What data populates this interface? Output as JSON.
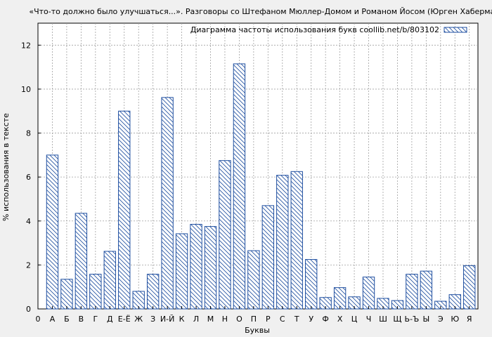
{
  "chart_data": {
    "type": "bar",
    "title": "«Что-то должно было улучшаться...». Разговоры со Штефаном Мюллер-Домом и Романом Йосом (Юрген Хабермас)",
    "xlabel": "Буквы",
    "ylabel": "% использования в тексте",
    "legend": "Диаграмма частоты использования букв coollib.net/b/803102",
    "legend_position": "top-right",
    "grid": true,
    "ylim": [
      0,
      13
    ],
    "yticks": [
      "0",
      "2",
      "4",
      "6",
      "8",
      "10",
      "12"
    ],
    "x_first_label": "0",
    "categories": [
      "А",
      "Б",
      "В",
      "Г",
      "Д",
      "Е-Ё",
      "Ж",
      "З",
      "И-Й",
      "К",
      "Л",
      "М",
      "Н",
      "О",
      "П",
      "Р",
      "С",
      "Т",
      "У",
      "Ф",
      "Х",
      "Ц",
      "Ч",
      "Ш",
      "Щ",
      "Ь-Ъ",
      "Ы",
      "Э",
      "Ю",
      "Я"
    ],
    "values": [
      7.0,
      1.35,
      4.35,
      1.58,
      2.62,
      9.0,
      0.8,
      1.58,
      9.62,
      3.42,
      3.85,
      3.75,
      6.75,
      11.15,
      2.65,
      4.7,
      6.08,
      6.25,
      2.25,
      0.52,
      0.97,
      0.55,
      1.45,
      0.48,
      0.38,
      1.58,
      1.72,
      0.35,
      0.65,
      1.97
    ],
    "colors": {
      "bar_stroke": "#1f4fa0",
      "hatch": "#1f4fa0",
      "bar_fill": "#ffffff",
      "plot_bg": "#ffffff",
      "grid": "#a0a0a0"
    }
  }
}
